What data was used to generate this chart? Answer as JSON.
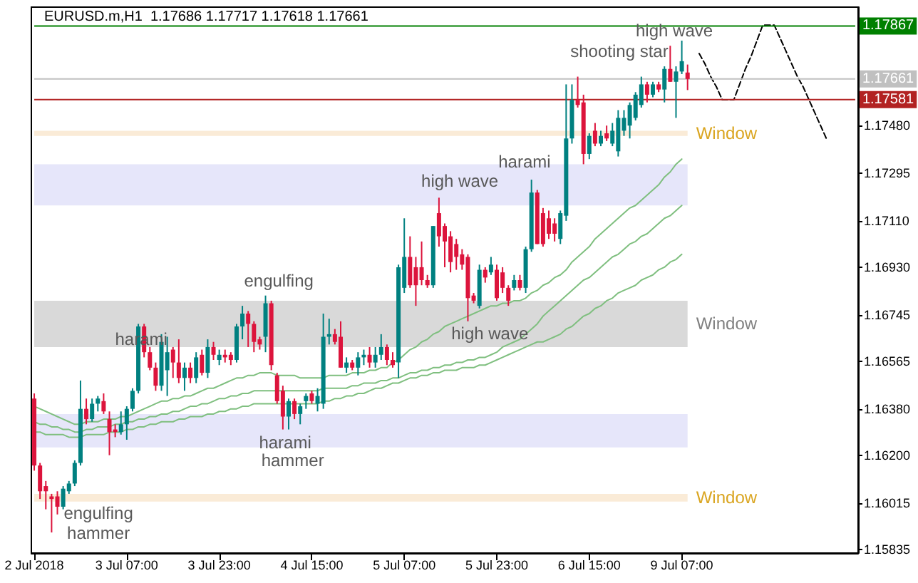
{
  "chart_data": {
    "type": "candlestick",
    "title": "EURUSD.m,H1  1.17686 1.17717 1.17618 1.17661",
    "categories": [
      "2 Jul 2018",
      null,
      null,
      null,
      null,
      null,
      null,
      null,
      null,
      null,
      null,
      null,
      null,
      null,
      null,
      null,
      "3 Jul 07:00",
      null,
      null,
      null,
      null,
      null,
      null,
      null,
      null,
      null,
      null,
      null,
      null,
      null,
      null,
      null,
      "3 Jul 23:00",
      null,
      null,
      null,
      null,
      null,
      null,
      null,
      null,
      null,
      null,
      null,
      null,
      null,
      null,
      null,
      "4 Jul 15:00",
      null,
      null,
      null,
      null,
      null,
      null,
      null,
      null,
      null,
      null,
      null,
      null,
      null,
      null,
      null,
      "5 Jul 07:00",
      null,
      null,
      null,
      null,
      null,
      null,
      null,
      null,
      null,
      null,
      null,
      null,
      null,
      null,
      null,
      "5 Jul 23:00",
      null,
      null,
      null,
      null,
      null,
      null,
      null,
      null,
      null,
      null,
      null,
      null,
      null,
      null,
      null,
      "6 Jul 15:00",
      null,
      null,
      null,
      null,
      null,
      null,
      null,
      null,
      null,
      null,
      null,
      null,
      null,
      null,
      null,
      "9 Jul 07:00",
      null,
      null,
      null,
      null,
      null,
      null,
      null,
      null,
      null,
      null,
      null,
      null,
      null,
      null,
      null,
      null,
      null,
      null,
      null,
      null,
      null,
      null,
      null,
      null,
      null,
      null,
      null,
      null,
      null,
      null
    ],
    "ohlc": [
      [
        1.1642,
        1.1644,
        1.1614,
        1.1616
      ],
      [
        1.1616,
        1.1617,
        1.1603,
        1.1606
      ],
      [
        1.1608,
        1.161,
        1.1599,
        1.1606
      ],
      [
        1.1604,
        1.1605,
        1.159,
        1.1603
      ],
      [
        1.1604,
        1.1606,
        1.1597,
        1.16
      ],
      [
        1.16,
        1.1608,
        1.1599,
        1.1607
      ],
      [
        1.1606,
        1.161,
        1.1605,
        1.1609
      ],
      [
        1.1609,
        1.1618,
        1.1608,
        1.1617
      ],
      [
        1.1617,
        1.1649,
        1.1616,
        1.1638
      ],
      [
        1.1638,
        1.1642,
        1.1632,
        1.1634
      ],
      [
        1.1634,
        1.1642,
        1.1633,
        1.164
      ],
      [
        1.164,
        1.1643,
        1.1637,
        1.1642
      ],
      [
        1.1641,
        1.1644,
        1.1636,
        1.1637
      ],
      [
        1.1634,
        1.1637,
        1.162,
        1.1629
      ],
      [
        1.163,
        1.1632,
        1.1627,
        1.1629
      ],
      [
        1.1629,
        1.1637,
        1.1628,
        1.1632
      ],
      [
        1.1632,
        1.1639,
        1.1626,
        1.1638
      ],
      [
        1.1638,
        1.1646,
        1.1637,
        1.1645
      ],
      [
        1.1645,
        1.1671,
        1.1644,
        1.167
      ],
      [
        1.167,
        1.1671,
        1.1658,
        1.166
      ],
      [
        1.166,
        1.1662,
        1.1653,
        1.1654
      ],
      [
        1.1654,
        1.1656,
        1.1645,
        1.1647
      ],
      [
        1.1647,
        1.1667,
        1.1645,
        1.1664
      ],
      [
        1.1653,
        1.1666,
        1.1643,
        1.166
      ],
      [
        1.1661,
        1.1662,
        1.165,
        1.1656
      ],
      [
        1.1656,
        1.1665,
        1.1648,
        1.165
      ],
      [
        1.165,
        1.1656,
        1.1645,
        1.1654
      ],
      [
        1.1654,
        1.1656,
        1.1648,
        1.165
      ],
      [
        1.165,
        1.166,
        1.1648,
        1.1658
      ],
      [
        1.1659,
        1.1661,
        1.1651,
        1.1652
      ],
      [
        1.1652,
        1.1665,
        1.165,
        1.1662
      ],
      [
        1.1662,
        1.1664,
        1.1657,
        1.1659
      ],
      [
        1.1657,
        1.1661,
        1.1655,
        1.1659
      ],
      [
        1.1659,
        1.1661,
        1.1656,
        1.1658
      ],
      [
        1.1659,
        1.166,
        1.1655,
        1.1657
      ],
      [
        1.1657,
        1.1671,
        1.1656,
        1.167
      ],
      [
        1.167,
        1.1678,
        1.1665,
        1.1675
      ],
      [
        1.1675,
        1.1676,
        1.1662,
        1.1671
      ],
      [
        1.1671,
        1.1672,
        1.166,
        1.1664
      ],
      [
        1.1665,
        1.1666,
        1.1661,
        1.1663
      ],
      [
        1.1666,
        1.1682,
        1.166,
        1.1679
      ],
      [
        1.1679,
        1.168,
        1.1653,
        1.1655
      ],
      [
        1.1651,
        1.1652,
        1.164,
        1.1641
      ],
      [
        1.1645,
        1.1647,
        1.163,
        1.1635
      ],
      [
        1.1635,
        1.1642,
        1.163,
        1.1641
      ],
      [
        1.1641,
        1.1642,
        1.1634,
        1.1636
      ],
      [
        1.1636,
        1.164,
        1.1632,
        1.1639
      ],
      [
        1.1641,
        1.1644,
        1.1638,
        1.1643
      ],
      [
        1.1644,
        1.1645,
        1.164,
        1.1641
      ],
      [
        1.164,
        1.1646,
        1.1637,
        1.1643
      ],
      [
        1.164,
        1.1675,
        1.1638,
        1.1666
      ],
      [
        1.1666,
        1.1673,
        1.1663,
        1.1667
      ],
      [
        1.1667,
        1.1669,
        1.1663,
        1.1664
      ],
      [
        1.1666,
        1.1672,
        1.1654,
        1.1654
      ],
      [
        1.1654,
        1.1658,
        1.1652,
        1.1656
      ],
      [
        1.1656,
        1.1657,
        1.1653,
        1.1654
      ],
      [
        1.1654,
        1.166,
        1.1651,
        1.1658
      ],
      [
        1.1658,
        1.1661,
        1.1655,
        1.1659
      ],
      [
        1.1659,
        1.1662,
        1.1654,
        1.1656
      ],
      [
        1.1656,
        1.1662,
        1.1654,
        1.1659
      ],
      [
        1.1659,
        1.1667,
        1.1657,
        1.1662
      ],
      [
        1.1662,
        1.1663,
        1.1655,
        1.1657
      ],
      [
        1.1657,
        1.166,
        1.1654,
        1.1655
      ],
      [
        1.1656,
        1.1694,
        1.165,
        1.1693
      ],
      [
        1.1685,
        1.1712,
        1.1683,
        1.1697
      ],
      [
        1.1697,
        1.1705,
        1.1685,
        1.1686
      ],
      [
        1.1693,
        1.1697,
        1.1678,
        1.1686
      ],
      [
        1.1693,
        1.1703,
        1.1686,
        1.1688
      ],
      [
        1.1688,
        1.169,
        1.1685,
        1.1686
      ],
      [
        1.1686,
        1.1709,
        1.1685,
        1.1709
      ],
      [
        1.1714,
        1.172,
        1.1701,
        1.1705
      ],
      [
        1.1709,
        1.171,
        1.1693,
        1.1703
      ],
      [
        1.1705,
        1.1707,
        1.1691,
        1.1695
      ],
      [
        1.1702,
        1.1704,
        1.1692,
        1.1697
      ],
      [
        1.1698,
        1.17,
        1.1692,
        1.1694
      ],
      [
        1.1697,
        1.1698,
        1.1672,
        1.1681
      ],
      [
        1.1682,
        1.1683,
        1.1679,
        1.168
      ],
      [
        1.1678,
        1.1694,
        1.1677,
        1.1692
      ],
      [
        1.1692,
        1.1693,
        1.1687,
        1.1689
      ],
      [
        1.1691,
        1.1697,
        1.169,
        1.1694
      ],
      [
        1.1692,
        1.1694,
        1.168,
        1.1681
      ],
      [
        1.1691,
        1.1693,
        1.1683,
        1.1685
      ],
      [
        1.1685,
        1.1686,
        1.1678,
        1.168
      ],
      [
        1.1685,
        1.169,
        1.1684,
        1.1688
      ],
      [
        1.1688,
        1.169,
        1.1684,
        1.1685
      ],
      [
        1.1685,
        1.1701,
        1.1683,
        1.17
      ],
      [
        1.17,
        1.1727,
        1.1699,
        1.1722
      ],
      [
        1.1722,
        1.1723,
        1.1702,
        1.1702
      ],
      [
        1.1714,
        1.1716,
        1.1701,
        1.1702
      ],
      [
        1.1712,
        1.1715,
        1.1704,
        1.1706
      ],
      [
        1.171,
        1.1712,
        1.1703,
        1.1706
      ],
      [
        1.1704,
        1.1715,
        1.1702,
        1.1714
      ],
      [
        1.1713,
        1.1764,
        1.1711,
        1.1743
      ],
      [
        1.1743,
        1.1764,
        1.1741,
        1.1758
      ],
      [
        1.1758,
        1.1767,
        1.1755,
        1.1756
      ],
      [
        1.1757,
        1.176,
        1.1733,
        1.1737
      ],
      [
        1.1737,
        1.1745,
        1.1735,
        1.1744
      ],
      [
        1.1746,
        1.1749,
        1.174,
        1.1741
      ],
      [
        1.1741,
        1.1746,
        1.174,
        1.1744
      ],
      [
        1.1745,
        1.1748,
        1.1742,
        1.1743
      ],
      [
        1.1741,
        1.1749,
        1.174,
        1.1746
      ],
      [
        1.1738,
        1.1754,
        1.1736,
        1.1751
      ],
      [
        1.1746,
        1.1754,
        1.1744,
        1.1751
      ],
      [
        1.1748,
        1.1757,
        1.1743,
        1.1756
      ],
      [
        1.1751,
        1.1761,
        1.175,
        1.176
      ],
      [
        1.1756,
        1.1767,
        1.1755,
        1.1764
      ],
      [
        1.1764,
        1.1765,
        1.1757,
        1.176
      ],
      [
        1.176,
        1.1765,
        1.1759,
        1.1764
      ],
      [
        1.1764,
        1.1765,
        1.1761,
        1.1762
      ],
      [
        1.1762,
        1.1771,
        1.1757,
        1.177
      ],
      [
        1.177,
        1.1779,
        1.1765,
        1.1765
      ],
      [
        1.1765,
        1.1771,
        1.1751,
        1.1769
      ],
      [
        1.1769,
        1.1781,
        1.1768,
        1.1773
      ],
      [
        1.17686,
        1.17717,
        1.17618,
        1.17661
      ],
      null,
      null,
      null,
      null,
      null,
      null,
      null,
      null,
      null,
      null,
      null,
      null,
      null,
      null,
      null,
      null,
      null,
      null,
      null,
      null,
      null,
      null,
      null,
      null,
      null,
      null,
      null,
      null,
      null
    ],
    "colors": [
      "#dc143c",
      "#dc143c",
      "#dc143c",
      "#dc143c",
      "#dc143c",
      "#008080",
      "#008080",
      "#008080",
      "#008080",
      "#dc143c",
      "#008080",
      "#008080",
      "#dc143c",
      "#dc143c",
      "#dc143c",
      "#008080",
      "#008080",
      "#008080",
      "#008080",
      "#dc143c",
      "#dc143c",
      "#dc143c",
      "#008080",
      "#008080",
      "#dc143c",
      "#dc143c",
      "#008080",
      "#dc143c",
      "#008080",
      "#dc143c",
      "#008080",
      "#dc143c",
      "#008080",
      "#dc143c",
      "#dc143c",
      "#008080",
      "#008080",
      "#dc143c",
      "#dc143c",
      "#dc143c",
      "#008080",
      "#dc143c",
      "#dc143c",
      "#dc143c",
      "#008080",
      "#dc143c",
      "#008080",
      "#008080",
      "#dc143c",
      "#008080",
      "#008080",
      "#008080",
      "#dc143c",
      "#dc143c",
      "#008080",
      "#dc143c",
      "#008080",
      "#008080",
      "#dc143c",
      "#008080",
      "#008080",
      "#dc143c",
      "#dc143c",
      "#008080",
      "#008080",
      "#dc143c",
      "#dc143c",
      "#dc143c",
      "#dc143c",
      "#008080",
      "#dc143c",
      "#dc143c",
      "#dc143c",
      "#dc143c",
      "#dc143c",
      "#dc143c",
      "#dc143c",
      "#008080",
      "#dc143c",
      "#008080",
      "#dc143c",
      "#dc143c",
      "#dc143c",
      "#008080",
      "#dc143c",
      "#008080",
      "#008080",
      "#dc143c",
      "#dc143c",
      "#dc143c",
      "#dc143c",
      "#008080",
      "#008080",
      "#008080",
      "#dc143c",
      "#dc143c",
      "#008080",
      "#dc143c",
      "#008080",
      "#dc143c",
      "#008080",
      "#008080",
      "#008080",
      "#008080",
      "#008080",
      "#008080",
      "#dc143c",
      "#008080",
      "#dc143c",
      "#008080",
      "#dc143c",
      "#008080",
      "#008080",
      "#dc143c",
      null,
      null,
      null,
      null,
      null,
      null,
      null,
      null,
      null,
      null,
      null,
      null,
      null,
      null,
      null,
      null,
      null,
      null,
      null,
      null,
      null,
      null,
      null,
      null,
      null,
      null,
      null,
      null,
      null
    ],
    "series": [
      {
        "type": "line",
        "color": "#7fbf7f",
        "line_style": "solid",
        "values": [
          1.1639,
          1.1638,
          1.1637,
          1.1636,
          1.1635,
          1.1634,
          1.1633,
          1.1632,
          1.1632,
          1.1633,
          1.1633,
          1.1633,
          1.1634,
          1.1634,
          1.1634,
          1.1635,
          1.1635,
          1.1636,
          1.1637,
          1.1638,
          1.1639,
          1.164,
          1.1641,
          1.1641,
          1.1642,
          1.1642,
          1.1643,
          1.1643,
          1.1644,
          1.1645,
          1.1646,
          1.1646,
          1.1647,
          1.1648,
          1.1649,
          1.165,
          1.165,
          1.1651,
          1.1651,
          1.1652,
          1.1652,
          1.1652,
          1.1651,
          1.1651,
          1.1651,
          1.1651,
          1.165,
          1.165,
          1.165,
          1.165,
          1.165,
          1.1651,
          1.1651,
          1.1651,
          1.1651,
          1.1652,
          1.1652,
          1.1652,
          1.1653,
          1.1653,
          1.1654,
          1.1654,
          1.1656,
          1.1657,
          1.1659,
          1.1661,
          1.1662,
          1.1664,
          1.1665,
          1.1667,
          1.1668,
          1.167,
          1.1671,
          1.1672,
          1.1673,
          1.1674,
          1.1675,
          1.1676,
          1.1677,
          1.1678,
          1.1678,
          1.1679,
          1.1679,
          1.168,
          1.168,
          1.1681,
          1.1683,
          1.1684,
          1.1686,
          1.1687,
          1.1689,
          1.169,
          1.1692,
          1.1695,
          1.1697,
          1.1699,
          1.1701,
          1.1704,
          1.1706,
          1.1708,
          1.171,
          1.1712,
          1.1714,
          1.1716,
          1.1717,
          1.1719,
          1.1721,
          1.1723,
          1.1725,
          1.1728,
          1.173,
          1.1733,
          1.1735,
          null,
          null,
          null,
          null,
          null,
          null,
          null,
          null,
          null,
          null,
          null,
          null,
          null,
          null,
          null,
          null,
          null,
          null,
          null,
          null,
          null,
          null,
          null,
          null,
          null,
          null,
          null,
          null,
          null,
          null
        ]
      },
      {
        "type": "line",
        "color": "#7fbf7f",
        "line_style": "solid",
        "values": [
          1.1633,
          1.1632,
          1.1632,
          1.1631,
          1.1631,
          1.163,
          1.163,
          1.1629,
          1.1629,
          1.163,
          1.163,
          1.1631,
          1.1631,
          1.1631,
          1.1632,
          1.1632,
          1.1633,
          1.1633,
          1.1634,
          1.1634,
          1.1635,
          1.1635,
          1.1636,
          1.1636,
          1.1637,
          1.1637,
          1.1638,
          1.1639,
          1.1639,
          1.164,
          1.164,
          1.1641,
          1.1642,
          1.1642,
          1.1643,
          1.1643,
          1.1644,
          1.1644,
          1.1645,
          1.1645,
          1.1645,
          1.1645,
          1.1645,
          1.1645,
          1.1645,
          1.1645,
          1.1645,
          1.1645,
          1.1645,
          1.1645,
          1.1646,
          1.1646,
          1.1646,
          1.1646,
          1.1646,
          1.1647,
          1.1647,
          1.1648,
          1.1648,
          1.1648,
          1.1649,
          1.1649,
          1.165,
          1.165,
          1.1651,
          1.1652,
          1.1652,
          1.1653,
          1.1653,
          1.1654,
          1.1654,
          1.1655,
          1.1655,
          1.1656,
          1.1656,
          1.1657,
          1.1657,
          1.1658,
          1.1658,
          1.1659,
          1.166,
          1.1662,
          1.1663,
          1.1664,
          1.1665,
          1.1667,
          1.1669,
          1.1671,
          1.1674,
          1.1676,
          1.1678,
          1.168,
          1.1682,
          1.1684,
          1.1686,
          1.1688,
          1.1689,
          1.1691,
          1.1693,
          1.1695,
          1.1697,
          1.1698,
          1.17,
          1.1702,
          1.1703,
          1.1705,
          1.1706,
          1.1708,
          1.171,
          1.1712,
          1.1713,
          1.1715,
          1.1717,
          null,
          null,
          null,
          null,
          null,
          null,
          null,
          null,
          null,
          null,
          null,
          null,
          null,
          null,
          null,
          null,
          null,
          null,
          null,
          null,
          null,
          null,
          null,
          null,
          null,
          null,
          null,
          null,
          null,
          null
        ]
      },
      {
        "type": "line",
        "color": "#7fbf7f",
        "line_style": "solid",
        "values": [
          1.1629,
          1.1629,
          1.1628,
          1.1628,
          1.1628,
          1.1628,
          1.1627,
          1.1627,
          1.1627,
          1.1628,
          1.1628,
          1.1628,
          1.1628,
          1.1629,
          1.1629,
          1.1629,
          1.163,
          1.163,
          1.1631,
          1.1631,
          1.1632,
          1.1632,
          1.1633,
          1.1633,
          1.1633,
          1.1634,
          1.1634,
          1.1635,
          1.1635,
          1.1635,
          1.1636,
          1.1636,
          1.1637,
          1.1637,
          1.1638,
          1.1638,
          1.1639,
          1.1639,
          1.164,
          1.164,
          1.164,
          1.164,
          1.164,
          1.164,
          1.164,
          1.164,
          1.164,
          1.164,
          1.164,
          1.164,
          1.1641,
          1.1641,
          1.1642,
          1.1642,
          1.1643,
          1.1643,
          1.1644,
          1.1644,
          1.1645,
          1.1646,
          1.1646,
          1.1647,
          1.1648,
          1.1648,
          1.1649,
          1.165,
          1.165,
          1.1651,
          1.1651,
          1.1652,
          1.1652,
          1.1653,
          1.1653,
          1.1653,
          1.1654,
          1.1654,
          1.1654,
          1.1655,
          1.1655,
          1.1656,
          1.1657,
          1.1658,
          1.1659,
          1.166,
          1.1661,
          1.1662,
          1.1663,
          1.1664,
          1.1664,
          1.1665,
          1.1666,
          1.1667,
          1.1669,
          1.167,
          1.1672,
          1.1674,
          1.1675,
          1.1677,
          1.1678,
          1.168,
          1.1681,
          1.1683,
          1.1684,
          1.1685,
          1.1686,
          1.1688,
          1.1689,
          1.169,
          1.1692,
          1.1693,
          1.1695,
          1.1696,
          1.1698,
          null,
          null,
          null,
          null,
          null,
          null,
          null,
          null,
          null,
          null,
          null,
          null,
          null,
          null,
          null,
          null,
          null,
          null,
          null,
          null,
          null,
          null,
          null,
          null,
          null,
          null,
          null,
          null,
          null,
          null
        ]
      },
      {
        "type": "line",
        "color": "#000000",
        "line_style": "dashed",
        "values": [
          null,
          null,
          null,
          null,
          null,
          null,
          null,
          null,
          null,
          null,
          null,
          null,
          null,
          null,
          null,
          null,
          null,
          null,
          null,
          null,
          null,
          null,
          null,
          null,
          null,
          null,
          null,
          null,
          null,
          null,
          null,
          null,
          null,
          null,
          null,
          null,
          null,
          null,
          null,
          null,
          null,
          null,
          null,
          null,
          null,
          null,
          null,
          null,
          null,
          null,
          null,
          null,
          null,
          null,
          null,
          null,
          null,
          null,
          null,
          null,
          null,
          null,
          null,
          null,
          null,
          null,
          null,
          null,
          null,
          null,
          null,
          null,
          null,
          null,
          null,
          null,
          null,
          null,
          null,
          null,
          null,
          null,
          null,
          null,
          null,
          null,
          null,
          null,
          null,
          null,
          null,
          null,
          null,
          null,
          null,
          null,
          null,
          null,
          null,
          null,
          null,
          null,
          null,
          null,
          null,
          null,
          null,
          null,
          null,
          null,
          null,
          null,
          null,
          null,
          null,
          1.1776,
          1.1772,
          1.1767,
          1.1763,
          1.1758,
          1.1758,
          1.1758,
          1.1764,
          1.177,
          1.1775,
          1.1781,
          1.1787,
          1.1787,
          1.1787,
          1.1782,
          1.1777,
          1.1772,
          1.1767,
          1.1763,
          1.1758,
          1.1753,
          1.1748,
          1.1743,
          null,
          null,
          null,
          null,
          null
        ]
      }
    ],
    "ylim": [
      1.1582,
      1.1794
    ],
    "yticks": [
      {
        "value": 1.15835,
        "label": "1.15835"
      },
      {
        "value": 1.16015,
        "label": "1.16015"
      },
      {
        "value": 1.162,
        "label": "1.16200"
      },
      {
        "value": 1.1638,
        "label": "1.16380"
      },
      {
        "value": 1.16565,
        "label": "1.16565"
      },
      {
        "value": 1.16745,
        "label": "1.16745"
      },
      {
        "value": 1.1693,
        "label": "1.16930"
      },
      {
        "value": 1.1711,
        "label": "1.17110"
      },
      {
        "value": 1.17295,
        "label": "1.17295"
      },
      {
        "value": 1.1748,
        "label": "1.17480"
      }
    ],
    "ref_lines": [
      {
        "axis": "y",
        "value": 1.17867,
        "label": "1.17867",
        "color": "#008000"
      },
      {
        "axis": "y",
        "value": 1.17661,
        "label": "1.17661",
        "color": "#c0c0c0"
      },
      {
        "axis": "y",
        "value": 1.17581,
        "label": "1.17581",
        "color": "#b22222"
      }
    ],
    "bands": [
      {
        "axis": "y",
        "from": 1.1744,
        "to": 1.1746,
        "label": "Window",
        "color": "#faebd7"
      },
      {
        "axis": "y",
        "from": 1.1717,
        "to": 1.1733,
        "color": "#e6e6fa"
      },
      {
        "axis": "y",
        "from": 1.1662,
        "to": 1.168,
        "label": "Window",
        "color": "#d9d9d9"
      },
      {
        "axis": "y",
        "from": 1.1623,
        "to": 1.1636,
        "color": "#e6e6fa"
      },
      {
        "axis": "y",
        "from": 1.1602,
        "to": 1.1605,
        "label": "Window",
        "color": "#faebd7"
      }
    ],
    "annotations": [
      {
        "text": "harami",
        "y": 1.1665
      },
      "engulfing",
      {
        "text": "harami",
        "y": 1.1625
      },
      "hammer",
      "engulfing",
      "hammer",
      "high wave",
      {
        "text": "harami",
        "y": 1.1734
      },
      "high wave",
      "shooting star",
      {
        "text": "high wave",
        "y": 1.1785
      }
    ],
    "marker": "none",
    "grid": false
  }
}
